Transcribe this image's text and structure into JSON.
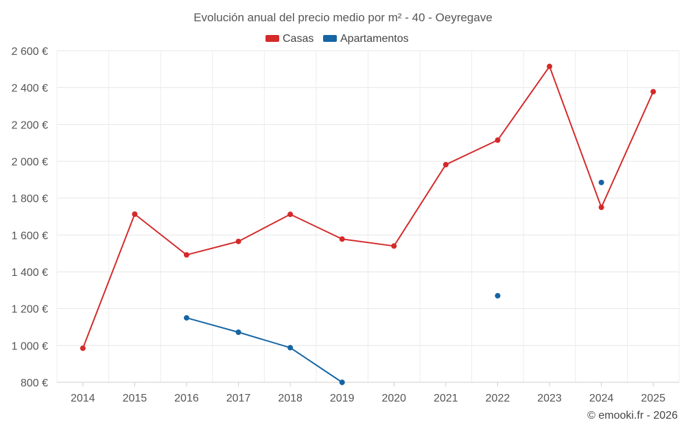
{
  "chart_data": {
    "type": "line",
    "title": "Evolución anual del precio medio por m² - 40 - Oeyregave",
    "categories": [
      "2014",
      "2015",
      "2016",
      "2017",
      "2018",
      "2019",
      "2020",
      "2021",
      "2022",
      "2023",
      "2024",
      "2025"
    ],
    "ylim": [
      800,
      2600
    ],
    "yticks": [
      800,
      1000,
      1200,
      1400,
      1600,
      1800,
      2000,
      2200,
      2400,
      2600
    ],
    "ytick_labels": [
      "800 €",
      "1 000 €",
      "1 200 €",
      "1 400 €",
      "1 600 €",
      "1 800 €",
      "2 000 €",
      "2 200 €",
      "2 400 €",
      "2 600 €"
    ],
    "grid": true,
    "legend_position": "top-center",
    "series": [
      {
        "name": "Casas",
        "color": "#d42a2a",
        "values": [
          985,
          1713,
          1492,
          1565,
          1712,
          1578,
          1540,
          1982,
          2115,
          2515,
          1750,
          2378
        ]
      },
      {
        "name": "Apartamentos",
        "color": "#1565a3",
        "values": [
          null,
          null,
          1150,
          1072,
          988,
          800,
          null,
          null,
          1270,
          null,
          1885,
          null
        ]
      }
    ],
    "credit": "© emooki.fr - 2026"
  }
}
